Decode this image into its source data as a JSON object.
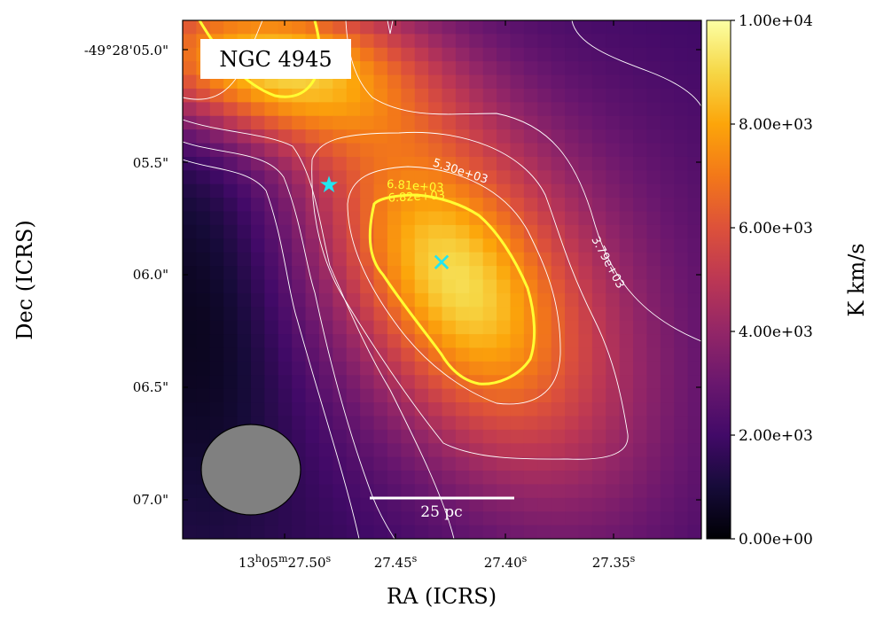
{
  "chart_data": {
    "type": "heatmap",
    "title": "NGC 4945",
    "xlabel": "RA (ICRS)",
    "ylabel": "Dec (ICRS)",
    "x_ticks": [
      "13h05m27.50s",
      "27.45s",
      "27.40s",
      "27.35s"
    ],
    "y_ticks": [
      "-49°28'05.0\"",
      "05.5\"",
      "06.0\"",
      "06.5\"",
      "07.0\""
    ],
    "colorbar": {
      "label": "K km/s",
      "min": 0,
      "max": 10000,
      "ticks": [
        "0.00e+00",
        "2.00e+03",
        "4.00e+03",
        "6.00e+03",
        "8.00e+03",
        "1.00e+04"
      ],
      "colormap": "inferno"
    },
    "contours": [
      {
        "level": "3.79e+03",
        "color": "#ffffff"
      },
      {
        "level": "5.30e+03",
        "color": "#ffffff"
      },
      {
        "level": "6.81e+03",
        "color": "#ffff33"
      },
      {
        "level": "6.82e+03",
        "color": "#ffff33"
      }
    ],
    "markers": [
      {
        "name": "star",
        "symbol": "★",
        "color": "#22e6f0"
      },
      {
        "name": "peak",
        "symbol": "✕",
        "color": "#22e6f0"
      }
    ],
    "scalebar_label": "25 pc",
    "beam": "ellipse"
  }
}
